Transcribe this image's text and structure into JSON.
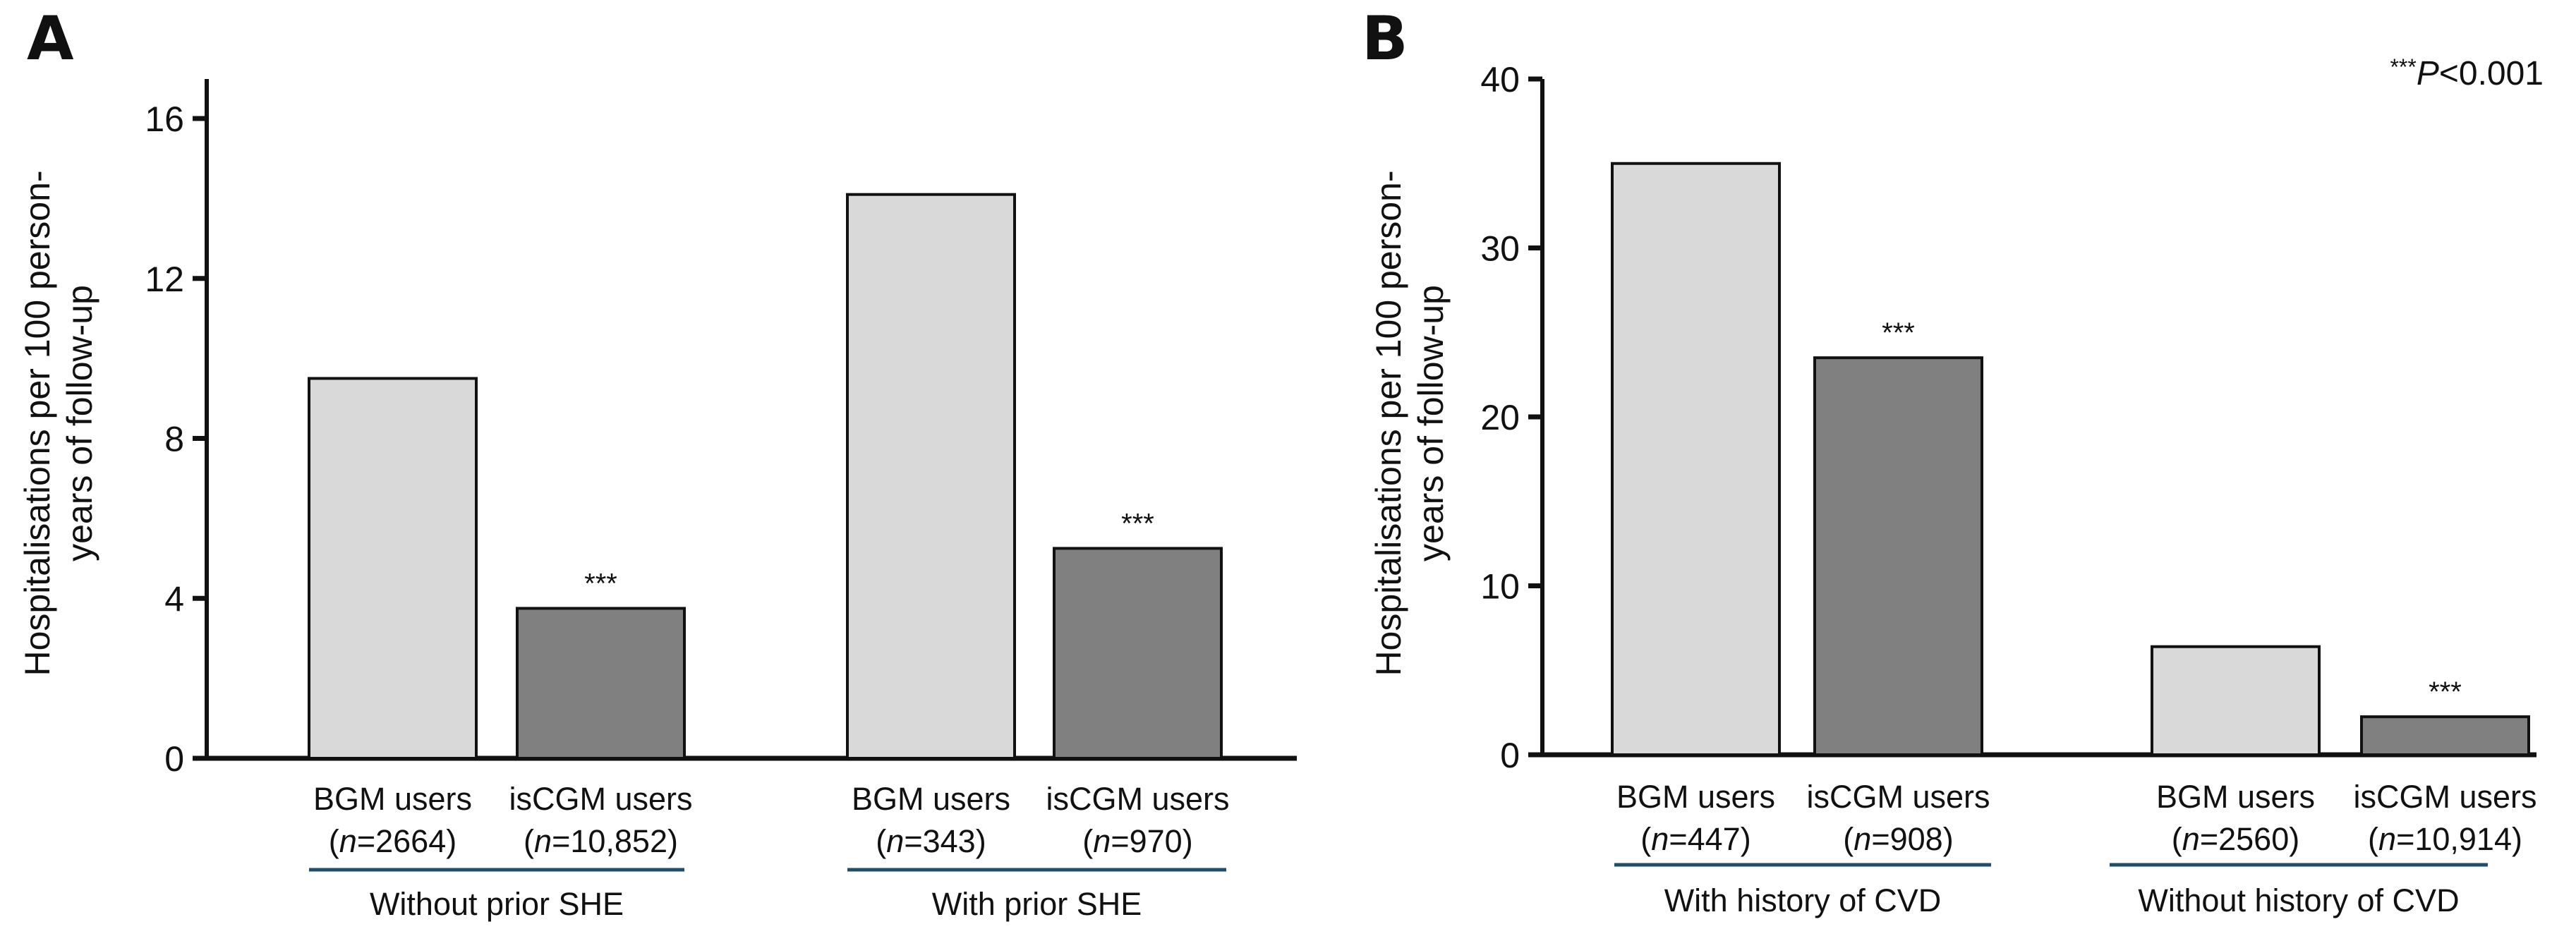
{
  "chart_data": [
    {
      "panel": "A",
      "type": "bar",
      "ylabel_lines": [
        "Hospitalisations per 100 person-",
        "years of follow-up"
      ],
      "ylim": [
        0,
        17
      ],
      "yticks": [
        0,
        4,
        8,
        12,
        16
      ],
      "grid": false,
      "groups": [
        {
          "label": "Without prior SHE",
          "bars": [
            {
              "category": "BGM users",
              "n_label": "2664",
              "value": 9.5,
              "fill": "#d9d9d9",
              "significance": ""
            },
            {
              "category": "isCGM users",
              "n_label": "10,852",
              "value": 3.75,
              "fill": "#808080",
              "significance": "***"
            }
          ]
        },
        {
          "label": "With prior SHE",
          "bars": [
            {
              "category": "BGM users",
              "n_label": "343",
              "value": 14.1,
              "fill": "#d9d9d9",
              "significance": ""
            },
            {
              "category": "isCGM users",
              "n_label": "970",
              "value": 5.25,
              "fill": "#808080",
              "significance": "***"
            }
          ]
        }
      ]
    },
    {
      "panel": "B",
      "type": "bar",
      "ylabel_lines": [
        "Hospitalisations per 100 person-",
        "years of follow-up"
      ],
      "ylim": [
        0,
        40
      ],
      "yticks": [
        0,
        10,
        20,
        30,
        40
      ],
      "grid": false,
      "annotation": {
        "stars": "***",
        "text": "P",
        "rest": "<0.001"
      },
      "groups": [
        {
          "label": "With history of CVD",
          "bars": [
            {
              "category": "BGM users",
              "n_label": "447",
              "value": 35.0,
              "fill": "#d9d9d9",
              "significance": ""
            },
            {
              "category": "isCGM users",
              "n_label": "908",
              "value": 23.5,
              "fill": "#808080",
              "significance": "***"
            }
          ]
        },
        {
          "label": "Without history of CVD",
          "bars": [
            {
              "category": "BGM users",
              "n_label": "2560",
              "value": 6.4,
              "fill": "#d9d9d9",
              "significance": ""
            },
            {
              "category": "isCGM users",
              "n_label": "10,914",
              "value": 2.25,
              "fill": "#808080",
              "significance": "***"
            }
          ]
        }
      ]
    }
  ],
  "colors": {
    "bgm": "#d9d9d9",
    "iscgm": "#808080",
    "group_underline": "#1f4e6b",
    "axis": "#111111"
  },
  "n_prefix": "n"
}
